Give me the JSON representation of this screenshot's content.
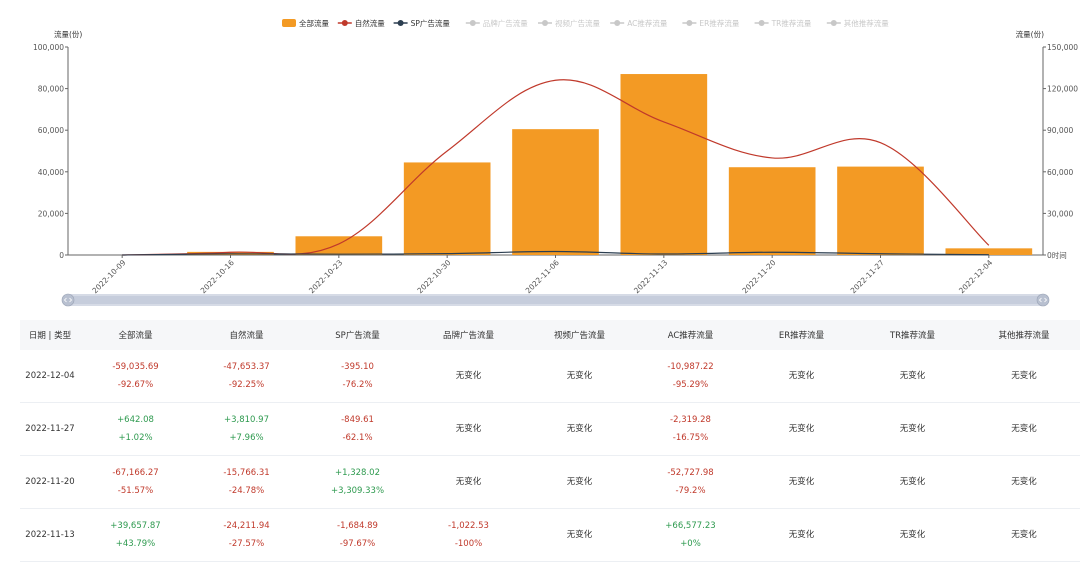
{
  "legend": [
    {
      "label": "全部流量",
      "color": "#f39a24",
      "active": true,
      "shape": "rect"
    },
    {
      "label": "自然流量",
      "color": "#c0392b",
      "active": true,
      "shape": "line"
    },
    {
      "label": "SP广告流量",
      "color": "#2c3e50",
      "active": true,
      "shape": "line"
    },
    {
      "label": "品牌广告流量",
      "color": "#c8c8c8",
      "active": false,
      "shape": "line"
    },
    {
      "label": "视频广告流量",
      "color": "#c8c8c8",
      "active": false,
      "shape": "line"
    },
    {
      "label": "AC推荐流量",
      "color": "#c8c8c8",
      "active": false,
      "shape": "line"
    },
    {
      "label": "ER推荐流量",
      "color": "#c8c8c8",
      "active": false,
      "shape": "line"
    },
    {
      "label": "TR推荐流量",
      "color": "#c8c8c8",
      "active": false,
      "shape": "line"
    },
    {
      "label": "其他推荐流量",
      "color": "#c8c8c8",
      "active": false,
      "shape": "line"
    }
  ],
  "chart_data": {
    "type": "bar",
    "categories": [
      "2022-10-09",
      "2022-10-16",
      "2022-10-23",
      "2022-10-30",
      "2022-11-06",
      "2022-11-13",
      "2022-11-20",
      "2022-11-27",
      "2022-12-04"
    ],
    "y_left": {
      "label": "流量(份)",
      "min": 0,
      "max": 100000,
      "ticks": [
        "0",
        "20,000",
        "40,000",
        "60,000",
        "80,000",
        "100,000"
      ],
      "tick_values": [
        0,
        20000,
        40000,
        60000,
        80000,
        100000
      ]
    },
    "y_right": {
      "label": "流量(份)",
      "min": 0,
      "max": 150000,
      "ticks": [
        "0时间",
        "30,000",
        "60,000",
        "90,000",
        "120,000",
        "150,000"
      ],
      "tick_values": [
        0,
        30000,
        60000,
        90000,
        120000,
        150000
      ]
    },
    "series": [
      {
        "name": "全部流量",
        "type": "bar",
        "axis": "left",
        "color": "#f39a24",
        "values": [
          0,
          1500,
          9000,
          44500,
          60500,
          87000,
          42200,
          42500,
          3200
        ]
      },
      {
        "name": "自然流量",
        "type": "line",
        "axis": "right",
        "color": "#c0392b",
        "values": [
          0,
          2000,
          8000,
          75000,
          126000,
          96000,
          70000,
          81000,
          7000
        ]
      },
      {
        "name": "SP广告流量",
        "type": "line",
        "axis": "right",
        "color": "#2c3e50",
        "values": [
          0,
          800,
          600,
          1000,
          2500,
          700,
          2000,
          900,
          200
        ]
      }
    ]
  },
  "table": {
    "headers": [
      "日期 | 类型",
      "全部流量",
      "自然流量",
      "SP广告流量",
      "品牌广告流量",
      "视频广告流量",
      "AC推荐流量",
      "ER推荐流量",
      "TR推荐流量",
      "其他推荐流量"
    ],
    "rows": [
      {
        "date": "2022-12-04",
        "cells": [
          {
            "v": "-59,035.69",
            "p": "-92.67%",
            "t": "neg"
          },
          {
            "v": "-47,653.37",
            "p": "-92.25%",
            "t": "neg"
          },
          {
            "v": "-395.10",
            "p": "-76.2%",
            "t": "neg"
          },
          {
            "n": "无变化"
          },
          {
            "n": "无变化"
          },
          {
            "v": "-10,987.22",
            "p": "-95.29%",
            "t": "neg"
          },
          {
            "n": "无变化"
          },
          {
            "n": "无变化"
          },
          {
            "n": "无变化"
          }
        ]
      },
      {
        "date": "2022-11-27",
        "cells": [
          {
            "v": "+642.08",
            "p": "+1.02%",
            "t": "pos"
          },
          {
            "v": "+3,810.97",
            "p": "+7.96%",
            "t": "pos"
          },
          {
            "v": "-849.61",
            "p": "-62.1%",
            "t": "neg"
          },
          {
            "n": "无变化"
          },
          {
            "n": "无变化"
          },
          {
            "v": "-2,319.28",
            "p": "-16.75%",
            "t": "neg"
          },
          {
            "n": "无变化"
          },
          {
            "n": "无变化"
          },
          {
            "n": "无变化"
          }
        ]
      },
      {
        "date": "2022-11-20",
        "cells": [
          {
            "v": "-67,166.27",
            "p": "-51.57%",
            "t": "neg"
          },
          {
            "v": "-15,766.31",
            "p": "-24.78%",
            "t": "neg"
          },
          {
            "v": "+1,328.02",
            "p": "+3,309.33%",
            "t": "pos"
          },
          {
            "n": "无变化"
          },
          {
            "n": "无变化"
          },
          {
            "v": "-52,727.98",
            "p": "-79.2%",
            "t": "neg"
          },
          {
            "n": "无变化"
          },
          {
            "n": "无变化"
          },
          {
            "n": "无变化"
          }
        ]
      },
      {
        "date": "2022-11-13",
        "cells": [
          {
            "v": "+39,657.87",
            "p": "+43.79%",
            "t": "pos"
          },
          {
            "v": "-24,211.94",
            "p": "-27.57%",
            "t": "neg"
          },
          {
            "v": "-1,684.89",
            "p": "-97.67%",
            "t": "neg"
          },
          {
            "v": "-1,022.53",
            "p": "-100%",
            "t": "neg"
          },
          {
            "n": "无变化"
          },
          {
            "v": "+66,577.23",
            "p": "+0%",
            "t": "pos"
          },
          {
            "n": "无变化"
          },
          {
            "n": "无变化"
          },
          {
            "n": "无变化"
          }
        ]
      }
    ]
  }
}
